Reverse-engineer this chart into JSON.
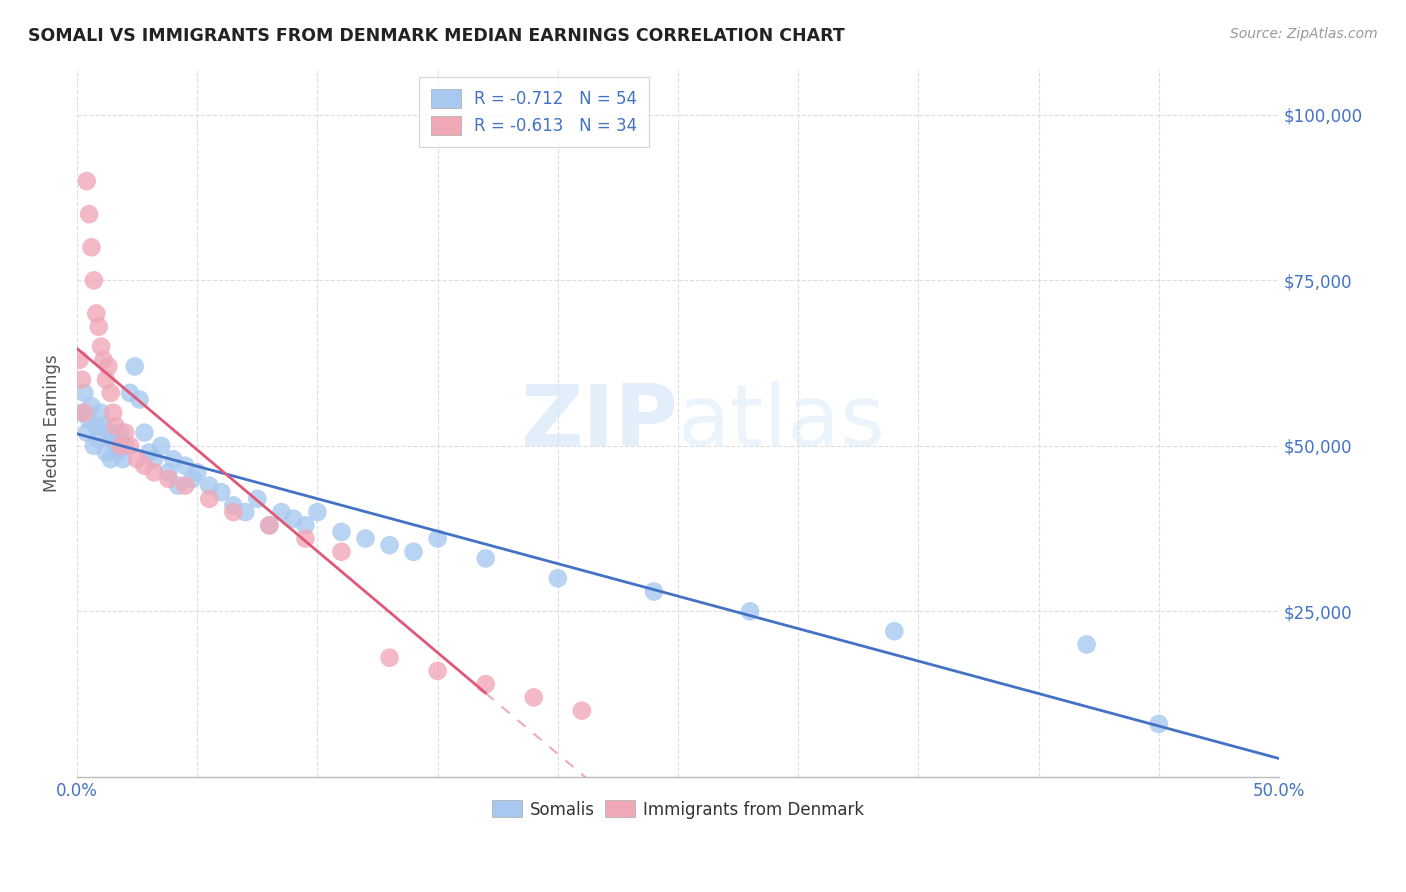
{
  "title": "SOMALI VS IMMIGRANTS FROM DENMARK MEDIAN EARNINGS CORRELATION CHART",
  "source": "Source: ZipAtlas.com",
  "ylabel": "Median Earnings",
  "somali_R": -0.712,
  "somali_N": 54,
  "denmark_R": -0.613,
  "denmark_N": 34,
  "somali_color": "#a8c8f0",
  "denmark_color": "#f0a8b8",
  "somali_line_color": "#4472c4",
  "denmark_line_color": "#e05878",
  "somali_x": [
    0.002,
    0.003,
    0.004,
    0.005,
    0.006,
    0.007,
    0.008,
    0.009,
    0.01,
    0.011,
    0.012,
    0.013,
    0.014,
    0.015,
    0.016,
    0.017,
    0.018,
    0.019,
    0.02,
    0.022,
    0.024,
    0.026,
    0.028,
    0.03,
    0.032,
    0.035,
    0.038,
    0.04,
    0.042,
    0.045,
    0.048,
    0.05,
    0.055,
    0.06,
    0.065,
    0.07,
    0.075,
    0.08,
    0.085,
    0.09,
    0.095,
    0.1,
    0.11,
    0.12,
    0.13,
    0.14,
    0.15,
    0.17,
    0.2,
    0.24,
    0.28,
    0.34,
    0.42,
    0.45
  ],
  "somali_y": [
    55000,
    58000,
    52000,
    54000,
    56000,
    50000,
    53000,
    51000,
    55000,
    53000,
    49000,
    52000,
    48000,
    51000,
    50000,
    49000,
    52000,
    48000,
    50000,
    58000,
    62000,
    57000,
    52000,
    49000,
    48000,
    50000,
    46000,
    48000,
    44000,
    47000,
    45000,
    46000,
    44000,
    43000,
    41000,
    40000,
    42000,
    38000,
    40000,
    39000,
    38000,
    40000,
    37000,
    36000,
    35000,
    34000,
    36000,
    33000,
    30000,
    28000,
    25000,
    22000,
    20000,
    8000
  ],
  "denmark_x": [
    0.001,
    0.002,
    0.003,
    0.004,
    0.005,
    0.006,
    0.007,
    0.008,
    0.009,
    0.01,
    0.011,
    0.012,
    0.013,
    0.014,
    0.015,
    0.016,
    0.018,
    0.02,
    0.022,
    0.025,
    0.028,
    0.032,
    0.038,
    0.045,
    0.055,
    0.065,
    0.08,
    0.095,
    0.11,
    0.13,
    0.15,
    0.17,
    0.19,
    0.21
  ],
  "denmark_y": [
    63000,
    60000,
    55000,
    90000,
    85000,
    80000,
    75000,
    70000,
    68000,
    65000,
    63000,
    60000,
    62000,
    58000,
    55000,
    53000,
    50000,
    52000,
    50000,
    48000,
    47000,
    46000,
    45000,
    44000,
    42000,
    40000,
    38000,
    36000,
    34000,
    18000,
    16000,
    14000,
    12000,
    10000
  ],
  "xlim": [
    0,
    0.5
  ],
  "ylim": [
    0,
    107000
  ],
  "ytick_positions": [
    0,
    25000,
    50000,
    75000,
    100000
  ],
  "ytick_labels": [
    "",
    "$25,000",
    "$50,000",
    "$75,000",
    "$100,000"
  ],
  "xtick_positions": [
    0.0,
    0.05,
    0.1,
    0.15,
    0.2,
    0.25,
    0.3,
    0.35,
    0.4,
    0.45,
    0.5
  ],
  "grid_color": "#dddddd",
  "somali_line_x_end": 0.5,
  "denmark_line_x_end": 0.17
}
